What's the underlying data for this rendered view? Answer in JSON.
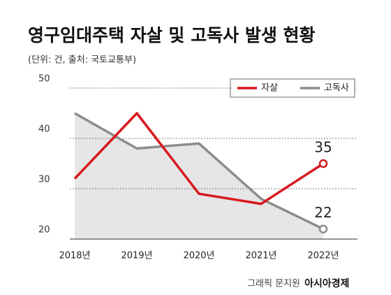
{
  "chart_data": {
    "type": "line",
    "title": "영구임대주택 자살 및 고독사 발생 현황",
    "subtitle": "(단위: 건, 출처: 국토교통부)",
    "categories": [
      "2018년",
      "2019년",
      "2020년",
      "2021년",
      "2022년"
    ],
    "series": [
      {
        "name": "자살",
        "color": "#d7191f",
        "values": [
          32,
          45,
          29,
          27,
          35
        ]
      },
      {
        "name": "고독사",
        "color": "#8c8c8c",
        "values": [
          45,
          38,
          39,
          28,
          22
        ]
      }
    ],
    "ylim": [
      20,
      50
    ],
    "yticks": [
      20,
      30,
      40,
      50
    ],
    "grid": true,
    "legend": "top-right",
    "credit": "그래픽 문지원",
    "brand": "아시아경제"
  }
}
